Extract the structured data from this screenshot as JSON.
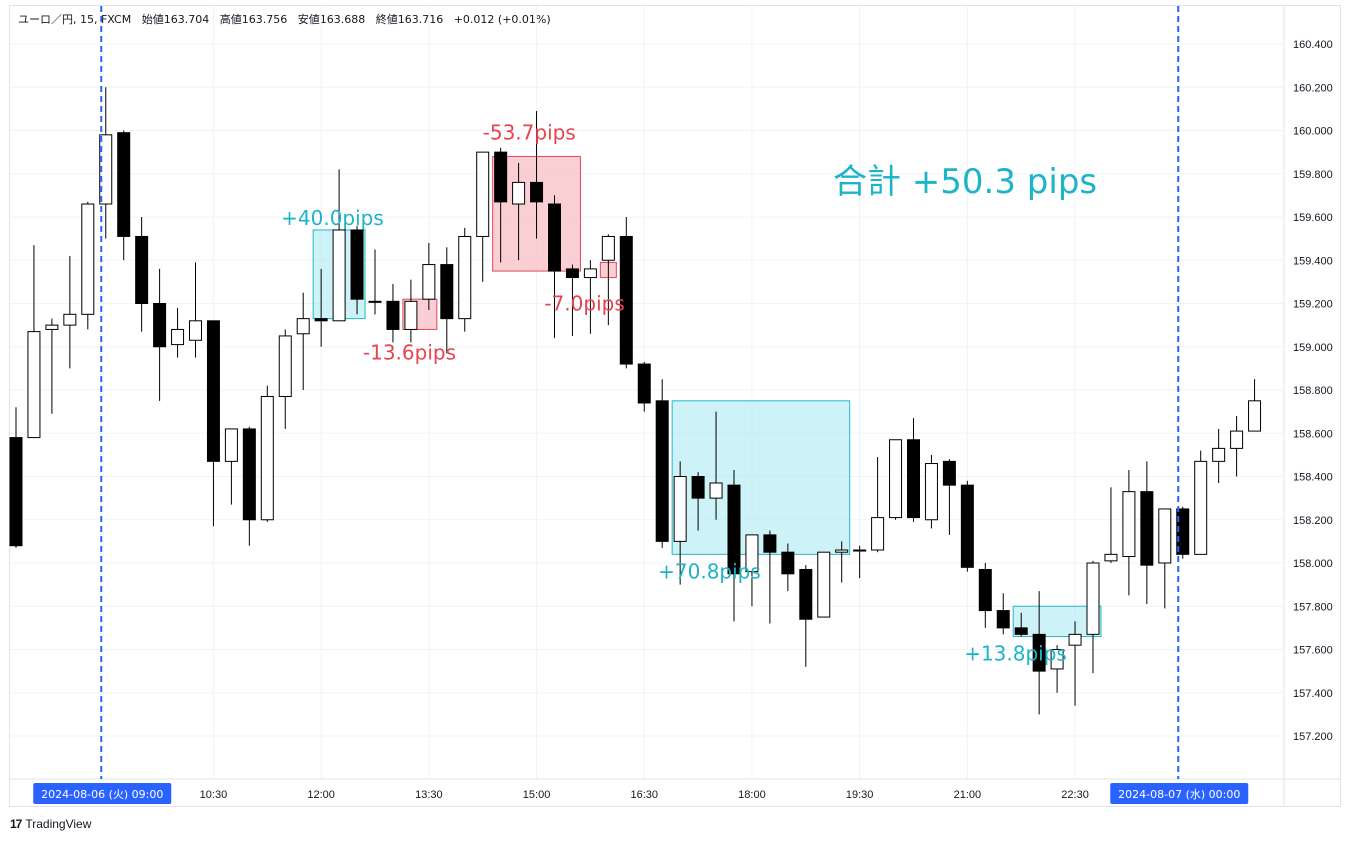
{
  "header": {
    "symbol": "ユーロ／円, 15, FXCM",
    "open": "始値163.704",
    "high": "高値163.756",
    "low": "安値163.688",
    "close": "終値163.716",
    "change": "+0.012 (+0.01%)"
  },
  "footer": {
    "logo_mark": "17",
    "brand": "TradingView"
  },
  "colors": {
    "grid": "#f0f3fa",
    "border": "#e0e3eb",
    "candle_up_fill": "#ffffff",
    "candle_down_fill": "#000000",
    "candle_outline": "#000000",
    "profit_fill": "#b2ebf2",
    "profit_stroke": "#26b7c7",
    "profit_text": "#1eb4c8",
    "loss_fill": "#f8bbc2",
    "loss_stroke": "#e04a5a",
    "loss_text": "#e8434f",
    "session_line": "#2962ff",
    "axis_text": "#131722",
    "date_badge_bg": "#2962ff",
    "date_badge_text": "#ffffff"
  },
  "chart_data": {
    "type": "candlestick",
    "title": "ユーロ／円, 15, FXCM",
    "ylim": [
      157.05,
      160.5
    ],
    "y_ticks": [
      "160.400",
      "160.200",
      "160.000",
      "159.800",
      "159.600",
      "159.400",
      "159.200",
      "159.000",
      "158.800",
      "158.600",
      "158.400",
      "158.200",
      "158.000",
      "157.800",
      "157.600",
      "157.400",
      "157.200"
    ],
    "x_ticks": [
      {
        "label": "2024-08-06 (火)   09:00",
        "bar": 5,
        "highlight": true
      },
      {
        "label": "10:30",
        "bar": 11
      },
      {
        "label": "12:00",
        "bar": 17
      },
      {
        "label": "13:30",
        "bar": 23
      },
      {
        "label": "15:00",
        "bar": 29
      },
      {
        "label": "16:30",
        "bar": 35
      },
      {
        "label": "18:00",
        "bar": 41
      },
      {
        "label": "19:30",
        "bar": 47
      },
      {
        "label": "21:00",
        "bar": 53
      },
      {
        "label": "22:30",
        "bar": 59
      },
      {
        "label": "2024-08-07 (水)   00:00",
        "bar": 65,
        "highlight": true
      }
    ],
    "session_lines_at_bar": [
      5,
      65
    ],
    "candles": [
      [
        158.58,
        158.72,
        158.07,
        158.08
      ],
      [
        158.58,
        159.47,
        158.58,
        159.07
      ],
      [
        159.08,
        159.13,
        158.69,
        159.1
      ],
      [
        159.1,
        159.42,
        158.9,
        159.15
      ],
      [
        159.15,
        159.67,
        159.08,
        159.66
      ],
      [
        159.66,
        160.2,
        159.5,
        159.98
      ],
      [
        159.99,
        160.0,
        159.4,
        159.51
      ],
      [
        159.51,
        159.6,
        159.07,
        159.2
      ],
      [
        159.2,
        159.36,
        158.75,
        159.0
      ],
      [
        159.01,
        159.18,
        158.95,
        159.08
      ],
      [
        159.03,
        159.39,
        158.95,
        159.12
      ],
      [
        159.12,
        159.12,
        158.17,
        158.47
      ],
      [
        158.47,
        158.62,
        158.27,
        158.62
      ],
      [
        158.62,
        158.63,
        158.08,
        158.2
      ],
      [
        158.2,
        158.82,
        158.19,
        158.77
      ],
      [
        158.77,
        159.08,
        158.62,
        159.05
      ],
      [
        159.06,
        159.25,
        158.8,
        159.13
      ],
      [
        159.13,
        159.36,
        159.0,
        159.12
      ],
      [
        159.12,
        159.82,
        159.12,
        159.54
      ],
      [
        159.54,
        159.56,
        159.15,
        159.22
      ],
      [
        159.21,
        159.45,
        159.15,
        159.21
      ],
      [
        159.21,
        159.29,
        159.02,
        159.08
      ],
      [
        159.08,
        159.31,
        159.02,
        159.21
      ],
      [
        159.22,
        159.48,
        159.17,
        159.38
      ],
      [
        159.38,
        159.46,
        158.97,
        159.13
      ],
      [
        159.13,
        159.55,
        159.07,
        159.51
      ],
      [
        159.51,
        159.88,
        159.3,
        159.9
      ],
      [
        159.9,
        159.92,
        159.39,
        159.67
      ],
      [
        159.66,
        159.85,
        159.4,
        159.76
      ],
      [
        159.76,
        160.09,
        159.5,
        159.67
      ],
      [
        159.66,
        159.7,
        159.04,
        159.35
      ],
      [
        159.36,
        159.38,
        159.05,
        159.32
      ],
      [
        159.32,
        159.4,
        159.06,
        159.36
      ],
      [
        159.4,
        159.52,
        159.1,
        159.51
      ],
      [
        159.51,
        159.6,
        158.9,
        158.92
      ],
      [
        158.92,
        158.93,
        158.7,
        158.74
      ],
      [
        158.75,
        158.85,
        158.07,
        158.1
      ],
      [
        158.1,
        158.47,
        157.9,
        158.4
      ],
      [
        158.4,
        158.42,
        158.15,
        158.3
      ],
      [
        158.3,
        158.7,
        158.2,
        158.37
      ],
      [
        158.36,
        158.43,
        157.73,
        157.95
      ],
      [
        157.96,
        158.1,
        157.8,
        158.13
      ],
      [
        158.13,
        158.15,
        157.72,
        158.05
      ],
      [
        158.05,
        158.09,
        157.87,
        157.95
      ],
      [
        157.97,
        157.99,
        157.52,
        157.74
      ],
      [
        157.75,
        158.05,
        157.76,
        158.05
      ],
      [
        158.05,
        158.1,
        157.91,
        158.06
      ],
      [
        158.06,
        158.08,
        157.93,
        158.06
      ],
      [
        158.06,
        158.49,
        158.05,
        158.21
      ],
      [
        158.21,
        158.57,
        158.2,
        158.57
      ],
      [
        158.57,
        158.67,
        158.19,
        158.21
      ],
      [
        158.2,
        158.5,
        158.16,
        158.46
      ],
      [
        158.47,
        158.48,
        158.13,
        158.36
      ],
      [
        158.36,
        158.38,
        157.96,
        157.98
      ],
      [
        157.97,
        158.0,
        157.7,
        157.78
      ],
      [
        157.78,
        157.86,
        157.67,
        157.7
      ],
      [
        157.7,
        157.77,
        157.66,
        157.67
      ],
      [
        157.67,
        157.87,
        157.3,
        157.5
      ],
      [
        157.51,
        157.62,
        157.4,
        157.6
      ],
      [
        157.62,
        157.73,
        157.34,
        157.67
      ],
      [
        157.67,
        158.01,
        157.49,
        158.0
      ],
      [
        158.01,
        158.35,
        158.0,
        158.04
      ],
      [
        158.03,
        158.43,
        157.85,
        158.33
      ],
      [
        158.33,
        158.47,
        157.81,
        157.99
      ],
      [
        158.0,
        158.25,
        157.79,
        158.25
      ],
      [
        158.25,
        158.26,
        158.02,
        158.04
      ],
      [
        158.04,
        158.52,
        158.04,
        158.47
      ],
      [
        158.47,
        158.62,
        158.37,
        158.53
      ],
      [
        158.53,
        158.68,
        158.4,
        158.61
      ],
      [
        158.61,
        158.85,
        158.61,
        158.75
      ]
    ],
    "trades": [
      {
        "label": "+40.0pips",
        "kind": "profit",
        "bar_from": 17,
        "bar_to": 19,
        "price_top": 159.54,
        "price_bottom": 159.13
      },
      {
        "label": "-13.6pips",
        "kind": "loss",
        "bar_from": 22,
        "bar_to": 23,
        "price_top": 159.22,
        "price_bottom": 159.08
      },
      {
        "label": "-53.7pips",
        "kind": "loss",
        "bar_from": 27,
        "bar_to": 31,
        "price_top": 159.88,
        "price_bottom": 159.35
      },
      {
        "label": "-7.0pips",
        "kind": "loss",
        "bar_from": 33,
        "bar_to": 33,
        "price_top": 159.39,
        "price_bottom": 159.32
      },
      {
        "label": "+70.8pips",
        "kind": "profit",
        "bar_from": 37,
        "bar_to": 46,
        "price_top": 158.75,
        "price_bottom": 158.04
      },
      {
        "label": "+13.8pips",
        "kind": "profit",
        "bar_from": 56,
        "bar_to": 60,
        "price_top": 157.8,
        "price_bottom": 157.66
      }
    ],
    "annotation": "合計 +50.3 pips"
  }
}
